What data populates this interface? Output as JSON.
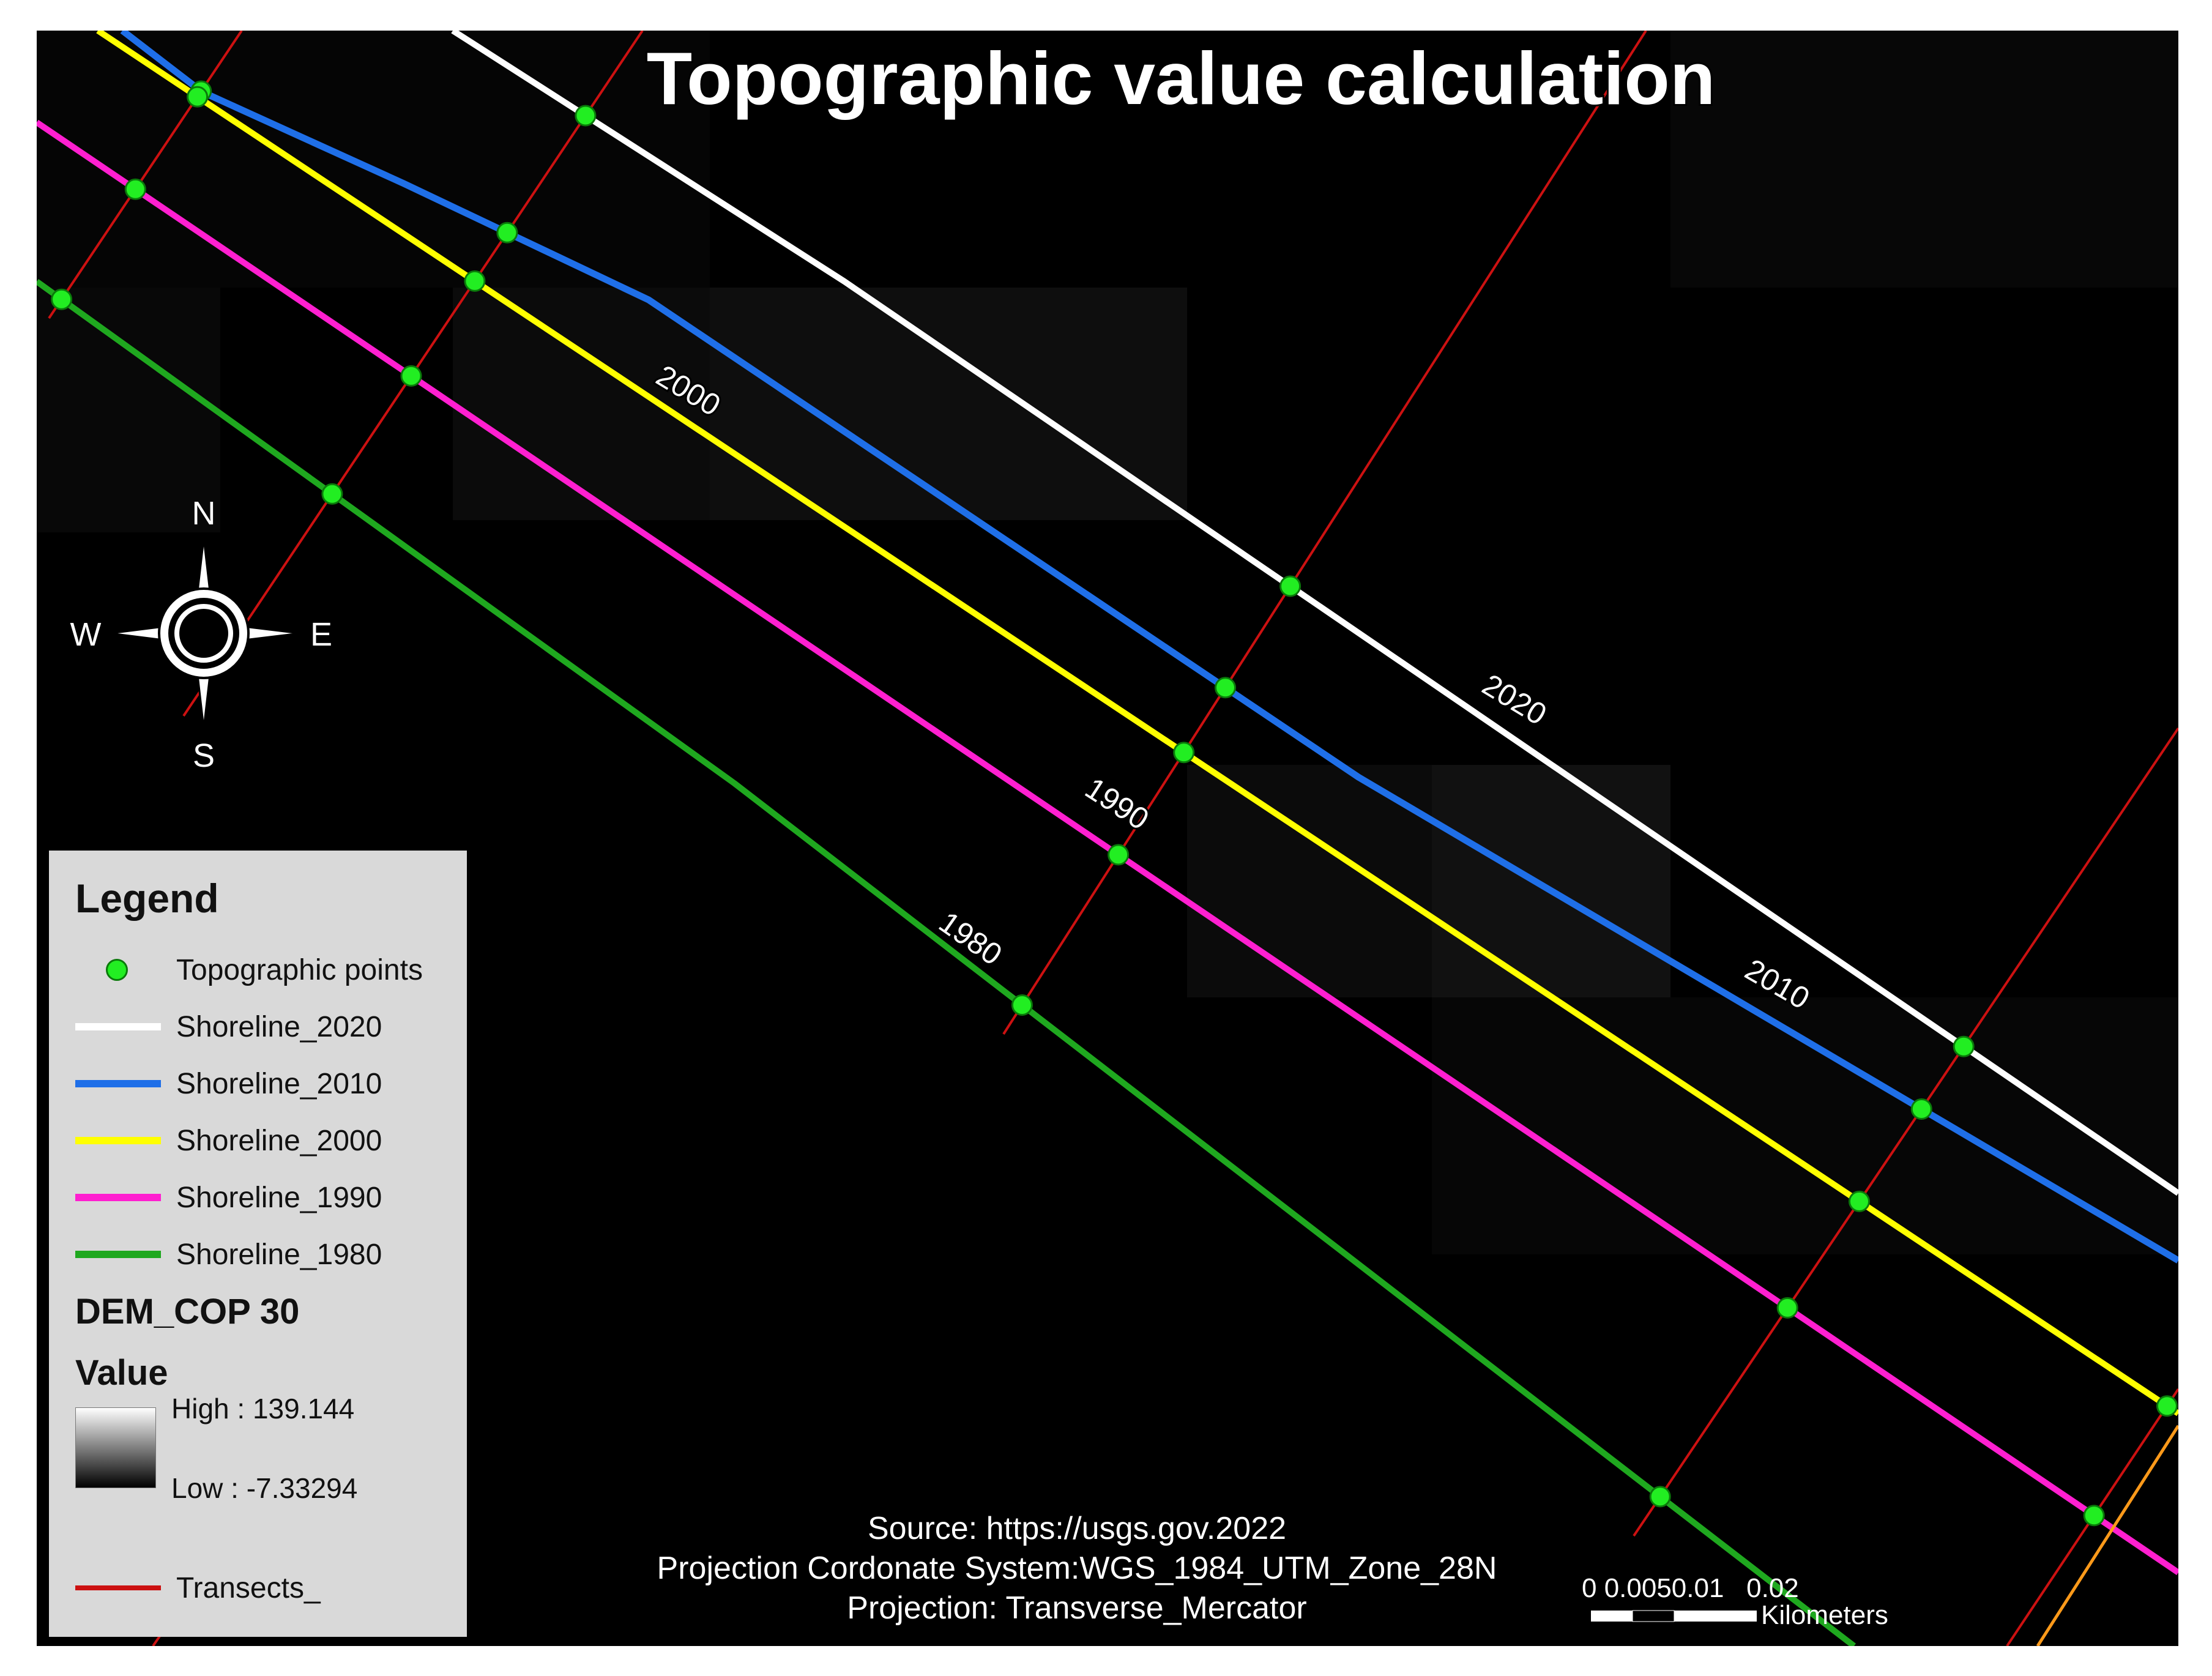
{
  "title": "Topographic value calculation",
  "compass": {
    "n": "N",
    "s": "S",
    "e": "E",
    "w": "W"
  },
  "colors": {
    "background": "#000000",
    "shoreline_2020": "#ffffff",
    "shoreline_2010": "#1f6fe8",
    "shoreline_2000": "#ffff00",
    "shoreline_1990": "#ff1fd0",
    "shoreline_1980": "#1fa81f",
    "transects": "#cc1111",
    "points": "#22ee22",
    "orange_line": "#ff9a1a"
  },
  "line_labels": {
    "l2020": "2020",
    "l2010": "2010",
    "l2000": "2000",
    "l1990": "1990",
    "l1980": "1980"
  },
  "legend": {
    "title": "Legend",
    "items": [
      {
        "label": "Topographic points"
      },
      {
        "label": "Shoreline_2020"
      },
      {
        "label": "Shoreline_2010"
      },
      {
        "label": "Shoreline_2000"
      },
      {
        "label": "Shoreline_1990"
      },
      {
        "label": "Shoreline_1980"
      }
    ],
    "dem_title": "DEM_COP 30",
    "value_title": "Value",
    "high": "High : 139.144",
    "low": "Low : -7.33294",
    "transects": "Transects_"
  },
  "source": {
    "line1": "Source: https://usgs.gov.2022",
    "line2": "Projection Cordonate System:WGS_1984_UTM_Zone_28N",
    "line3": "Projection: Transverse_Mercator"
  },
  "scale_bar": {
    "ticks": "0 0.0050.01   0.02",
    "unit": "Kilometers"
  }
}
